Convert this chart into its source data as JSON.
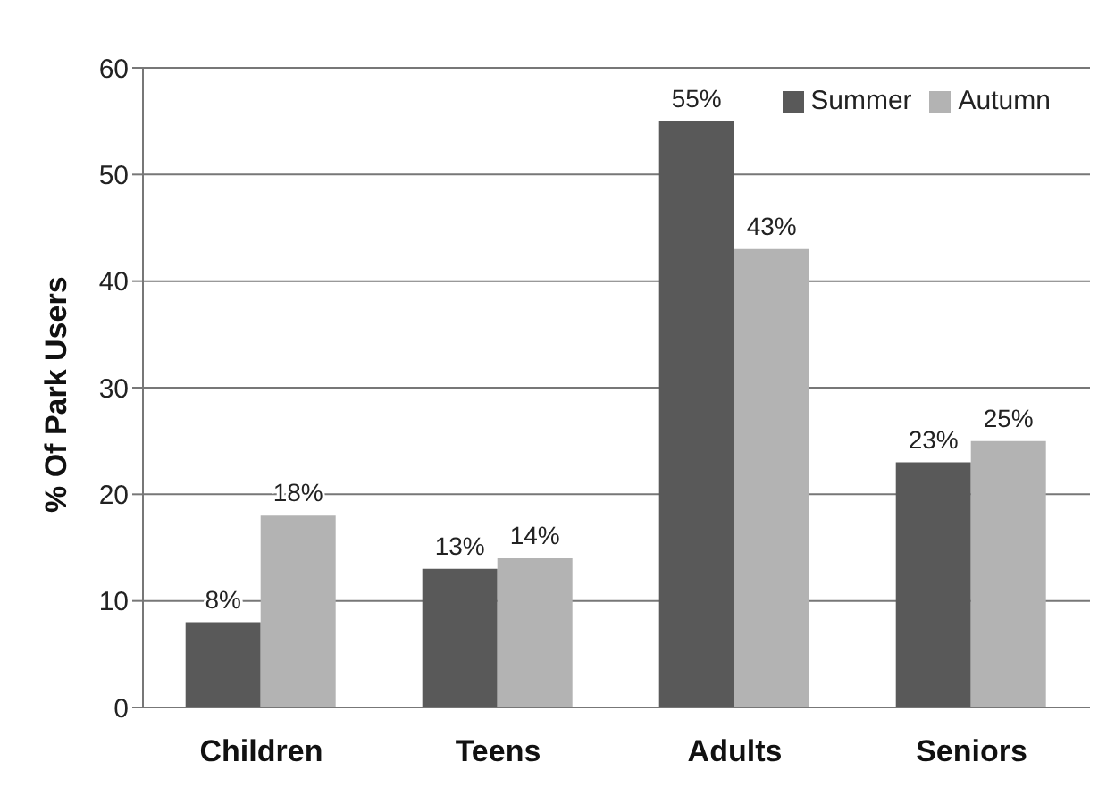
{
  "chart_data": {
    "type": "bar",
    "ylabel": "% Of Park Users",
    "categories": [
      "Children",
      "Teens",
      "Adults",
      "Seniors"
    ],
    "series": [
      {
        "name": "Summer",
        "color": "#595959",
        "values": [
          8,
          13,
          55,
          23
        ],
        "value_labels": [
          "8%",
          "13%",
          "55%",
          "23%"
        ]
      },
      {
        "name": "Autumn",
        "color": "#b3b3b3",
        "values": [
          18,
          14,
          43,
          25
        ],
        "value_labels": [
          "18%",
          "14%",
          "43%",
          "25%"
        ]
      }
    ],
    "ylim": [
      0,
      60
    ],
    "yticks": [
      0,
      10,
      20,
      30,
      40,
      50,
      60
    ],
    "grid": "y",
    "legend": "top right"
  }
}
